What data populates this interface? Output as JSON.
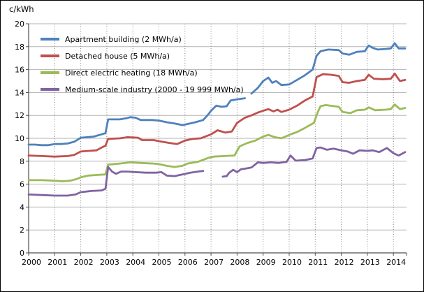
{
  "title": "c/kWh",
  "chart_data": {
    "type": "line",
    "title": "c/kWh",
    "xlabel": "",
    "ylabel": "c/kWh",
    "ylim": [
      0,
      20
    ],
    "xlim": [
      2000,
      2014.5
    ],
    "yticks": [
      0,
      2,
      4,
      6,
      8,
      10,
      12,
      14,
      16,
      18,
      20
    ],
    "xticks": [
      2000,
      2001,
      2002,
      2003,
      2004,
      2005,
      2006,
      2007,
      2008,
      2009,
      2010,
      2011,
      2012,
      2013,
      2014
    ],
    "grid": {
      "horizontal": "solid",
      "vertical": "dotted"
    },
    "legend_position": "top-left-inside",
    "series": [
      {
        "name": "Apartment building (2 MWh/a)",
        "color": "#4F81BD",
        "segments": [
          [
            [
              2000.0,
              9.45
            ],
            [
              2000.25,
              9.45
            ],
            [
              2000.5,
              9.4
            ],
            [
              2000.75,
              9.4
            ],
            [
              2001.0,
              9.5
            ],
            [
              2001.25,
              9.5
            ],
            [
              2001.5,
              9.55
            ],
            [
              2001.75,
              9.7
            ],
            [
              2002.0,
              10.05
            ],
            [
              2002.25,
              10.1
            ],
            [
              2002.5,
              10.15
            ],
            [
              2002.8,
              10.35
            ],
            [
              2002.95,
              10.45
            ],
            [
              2003.05,
              11.65
            ],
            [
              2003.5,
              11.65
            ],
            [
              2003.75,
              11.75
            ],
            [
              2003.9,
              11.85
            ],
            [
              2004.1,
              11.8
            ],
            [
              2004.3,
              11.6
            ],
            [
              2004.75,
              11.6
            ],
            [
              2005.0,
              11.55
            ],
            [
              2005.3,
              11.4
            ],
            [
              2005.6,
              11.3
            ],
            [
              2005.9,
              11.15
            ],
            [
              2006.1,
              11.25
            ],
            [
              2006.4,
              11.4
            ],
            [
              2006.7,
              11.6
            ],
            [
              2006.9,
              12.1
            ],
            [
              2007.0,
              12.4
            ],
            [
              2007.2,
              12.85
            ],
            [
              2007.4,
              12.75
            ],
            [
              2007.6,
              12.8
            ],
            [
              2007.75,
              13.3
            ],
            [
              2008.0,
              13.4
            ],
            [
              2008.3,
              13.5
            ]
          ],
          [
            [
              2008.55,
              13.9
            ],
            [
              2008.8,
              14.4
            ],
            [
              2009.0,
              15.0
            ],
            [
              2009.2,
              15.3
            ],
            [
              2009.35,
              14.85
            ],
            [
              2009.5,
              15.0
            ],
            [
              2009.7,
              14.65
            ],
            [
              2010.0,
              14.7
            ],
            [
              2010.3,
              15.1
            ],
            [
              2010.6,
              15.5
            ],
            [
              2010.9,
              16.0
            ],
            [
              2011.05,
              17.2
            ],
            [
              2011.2,
              17.6
            ],
            [
              2011.5,
              17.75
            ],
            [
              2011.9,
              17.7
            ],
            [
              2012.05,
              17.4
            ],
            [
              2012.3,
              17.3
            ],
            [
              2012.6,
              17.55
            ],
            [
              2012.9,
              17.6
            ],
            [
              2013.05,
              18.1
            ],
            [
              2013.2,
              17.9
            ],
            [
              2013.4,
              17.75
            ],
            [
              2013.7,
              17.8
            ],
            [
              2013.9,
              17.85
            ],
            [
              2014.05,
              18.3
            ],
            [
              2014.2,
              17.85
            ],
            [
              2014.45,
              17.85
            ]
          ]
        ]
      },
      {
        "name": "Detached house (5 MWh/a)",
        "color": "#C0504D",
        "segments": [
          [
            [
              2000.0,
              8.5
            ],
            [
              2000.5,
              8.45
            ],
            [
              2001.0,
              8.4
            ],
            [
              2001.5,
              8.45
            ],
            [
              2001.75,
              8.55
            ],
            [
              2002.0,
              8.85
            ],
            [
              2002.3,
              8.9
            ],
            [
              2002.6,
              8.95
            ],
            [
              2002.85,
              9.25
            ],
            [
              2002.95,
              9.35
            ],
            [
              2003.05,
              9.95
            ],
            [
              2003.5,
              10.0
            ],
            [
              2003.8,
              10.1
            ],
            [
              2004.2,
              10.05
            ],
            [
              2004.35,
              9.85
            ],
            [
              2004.8,
              9.85
            ],
            [
              2005.0,
              9.75
            ],
            [
              2005.4,
              9.6
            ],
            [
              2005.7,
              9.5
            ],
            [
              2006.0,
              9.8
            ],
            [
              2006.3,
              9.95
            ],
            [
              2006.6,
              10.0
            ],
            [
              2007.0,
              10.35
            ],
            [
              2007.25,
              10.7
            ],
            [
              2007.55,
              10.5
            ],
            [
              2007.8,
              10.6
            ],
            [
              2008.0,
              11.35
            ],
            [
              2008.3,
              11.8
            ],
            [
              2008.55,
              12.0
            ],
            [
              2008.8,
              12.25
            ],
            [
              2009.0,
              12.4
            ],
            [
              2009.2,
              12.55
            ],
            [
              2009.4,
              12.35
            ],
            [
              2009.55,
              12.5
            ],
            [
              2009.7,
              12.3
            ],
            [
              2010.0,
              12.5
            ],
            [
              2010.3,
              12.85
            ],
            [
              2010.6,
              13.3
            ],
            [
              2010.9,
              13.65
            ],
            [
              2011.05,
              15.35
            ],
            [
              2011.3,
              15.6
            ],
            [
              2011.6,
              15.55
            ],
            [
              2011.9,
              15.45
            ],
            [
              2012.05,
              14.9
            ],
            [
              2012.3,
              14.85
            ],
            [
              2012.6,
              15.0
            ],
            [
              2012.9,
              15.1
            ],
            [
              2013.05,
              15.55
            ],
            [
              2013.25,
              15.2
            ],
            [
              2013.6,
              15.15
            ],
            [
              2013.9,
              15.2
            ],
            [
              2014.05,
              15.65
            ],
            [
              2014.25,
              15.0
            ],
            [
              2014.45,
              15.1
            ]
          ]
        ]
      },
      {
        "name": "Direct electric heating (18 MWh/a)",
        "color": "#9BBB59",
        "segments": [
          [
            [
              2000.0,
              6.35
            ],
            [
              2000.5,
              6.35
            ],
            [
              2001.0,
              6.3
            ],
            [
              2001.3,
              6.25
            ],
            [
              2001.6,
              6.3
            ],
            [
              2001.85,
              6.45
            ],
            [
              2002.0,
              6.6
            ],
            [
              2002.3,
              6.75
            ],
            [
              2002.6,
              6.8
            ],
            [
              2002.95,
              6.85
            ],
            [
              2003.05,
              7.7
            ],
            [
              2003.5,
              7.8
            ],
            [
              2003.9,
              7.9
            ],
            [
              2004.3,
              7.85
            ],
            [
              2004.8,
              7.8
            ],
            [
              2005.0,
              7.75
            ],
            [
              2005.3,
              7.6
            ],
            [
              2005.6,
              7.5
            ],
            [
              2005.9,
              7.6
            ],
            [
              2006.1,
              7.8
            ],
            [
              2006.5,
              7.95
            ],
            [
              2006.9,
              8.3
            ],
            [
              2007.1,
              8.4
            ],
            [
              2007.5,
              8.45
            ],
            [
              2007.9,
              8.5
            ],
            [
              2008.1,
              9.3
            ],
            [
              2008.4,
              9.6
            ],
            [
              2008.7,
              9.8
            ],
            [
              2009.0,
              10.15
            ],
            [
              2009.2,
              10.3
            ],
            [
              2009.45,
              10.1
            ],
            [
              2009.7,
              10.0
            ],
            [
              2010.0,
              10.3
            ],
            [
              2010.3,
              10.55
            ],
            [
              2010.6,
              10.9
            ],
            [
              2010.95,
              11.35
            ],
            [
              2011.1,
              12.3
            ],
            [
              2011.2,
              12.8
            ],
            [
              2011.4,
              12.9
            ],
            [
              2011.9,
              12.75
            ],
            [
              2012.05,
              12.3
            ],
            [
              2012.35,
              12.2
            ],
            [
              2012.6,
              12.45
            ],
            [
              2012.9,
              12.5
            ],
            [
              2013.05,
              12.7
            ],
            [
              2013.3,
              12.45
            ],
            [
              2013.7,
              12.5
            ],
            [
              2013.9,
              12.55
            ],
            [
              2014.05,
              12.95
            ],
            [
              2014.25,
              12.55
            ],
            [
              2014.45,
              12.65
            ]
          ]
        ]
      },
      {
        "name": "Medium-scale industry (2000 - 19 999 MWh/a)",
        "color": "#8064A2",
        "segments": [
          [
            [
              2000.0,
              5.1
            ],
            [
              2000.5,
              5.05
            ],
            [
              2001.0,
              5.0
            ],
            [
              2001.5,
              5.0
            ],
            [
              2001.8,
              5.1
            ],
            [
              2002.0,
              5.3
            ],
            [
              2002.4,
              5.4
            ],
            [
              2002.8,
              5.45
            ],
            [
              2002.95,
              5.6
            ],
            [
              2003.05,
              7.5
            ],
            [
              2003.2,
              7.1
            ],
            [
              2003.35,
              6.9
            ],
            [
              2003.55,
              7.1
            ],
            [
              2003.8,
              7.1
            ],
            [
              2004.1,
              7.05
            ],
            [
              2004.5,
              7.0
            ],
            [
              2004.9,
              7.0
            ],
            [
              2005.1,
              7.05
            ],
            [
              2005.3,
              6.75
            ],
            [
              2005.6,
              6.7
            ],
            [
              2005.9,
              6.85
            ],
            [
              2006.2,
              7.0
            ],
            [
              2006.5,
              7.1
            ],
            [
              2006.7,
              7.15
            ]
          ],
          [
            [
              2007.45,
              6.65
            ],
            [
              2007.6,
              6.7
            ],
            [
              2007.7,
              7.0
            ],
            [
              2007.85,
              7.25
            ],
            [
              2008.0,
              7.05
            ],
            [
              2008.15,
              7.3
            ],
            [
              2008.3,
              7.35
            ],
            [
              2008.55,
              7.45
            ],
            [
              2008.8,
              7.9
            ],
            [
              2009.0,
              7.85
            ],
            [
              2009.3,
              7.9
            ],
            [
              2009.6,
              7.85
            ],
            [
              2009.9,
              7.95
            ],
            [
              2010.05,
              8.5
            ],
            [
              2010.25,
              8.05
            ],
            [
              2010.6,
              8.1
            ],
            [
              2010.9,
              8.25
            ],
            [
              2011.05,
              9.15
            ],
            [
              2011.2,
              9.2
            ],
            [
              2011.45,
              9.0
            ],
            [
              2011.7,
              9.1
            ],
            [
              2012.0,
              8.95
            ],
            [
              2012.25,
              8.85
            ],
            [
              2012.45,
              8.65
            ],
            [
              2012.7,
              8.95
            ],
            [
              2013.0,
              8.9
            ],
            [
              2013.2,
              8.95
            ],
            [
              2013.45,
              8.8
            ],
            [
              2013.75,
              9.15
            ],
            [
              2014.0,
              8.7
            ],
            [
              2014.2,
              8.5
            ],
            [
              2014.45,
              8.8
            ]
          ]
        ]
      }
    ]
  },
  "colors": {
    "axis": "#4d4d4d",
    "grid_solid": "#b3b3b3",
    "grid_dotted": "#7f7f7f",
    "text": "#000000"
  }
}
